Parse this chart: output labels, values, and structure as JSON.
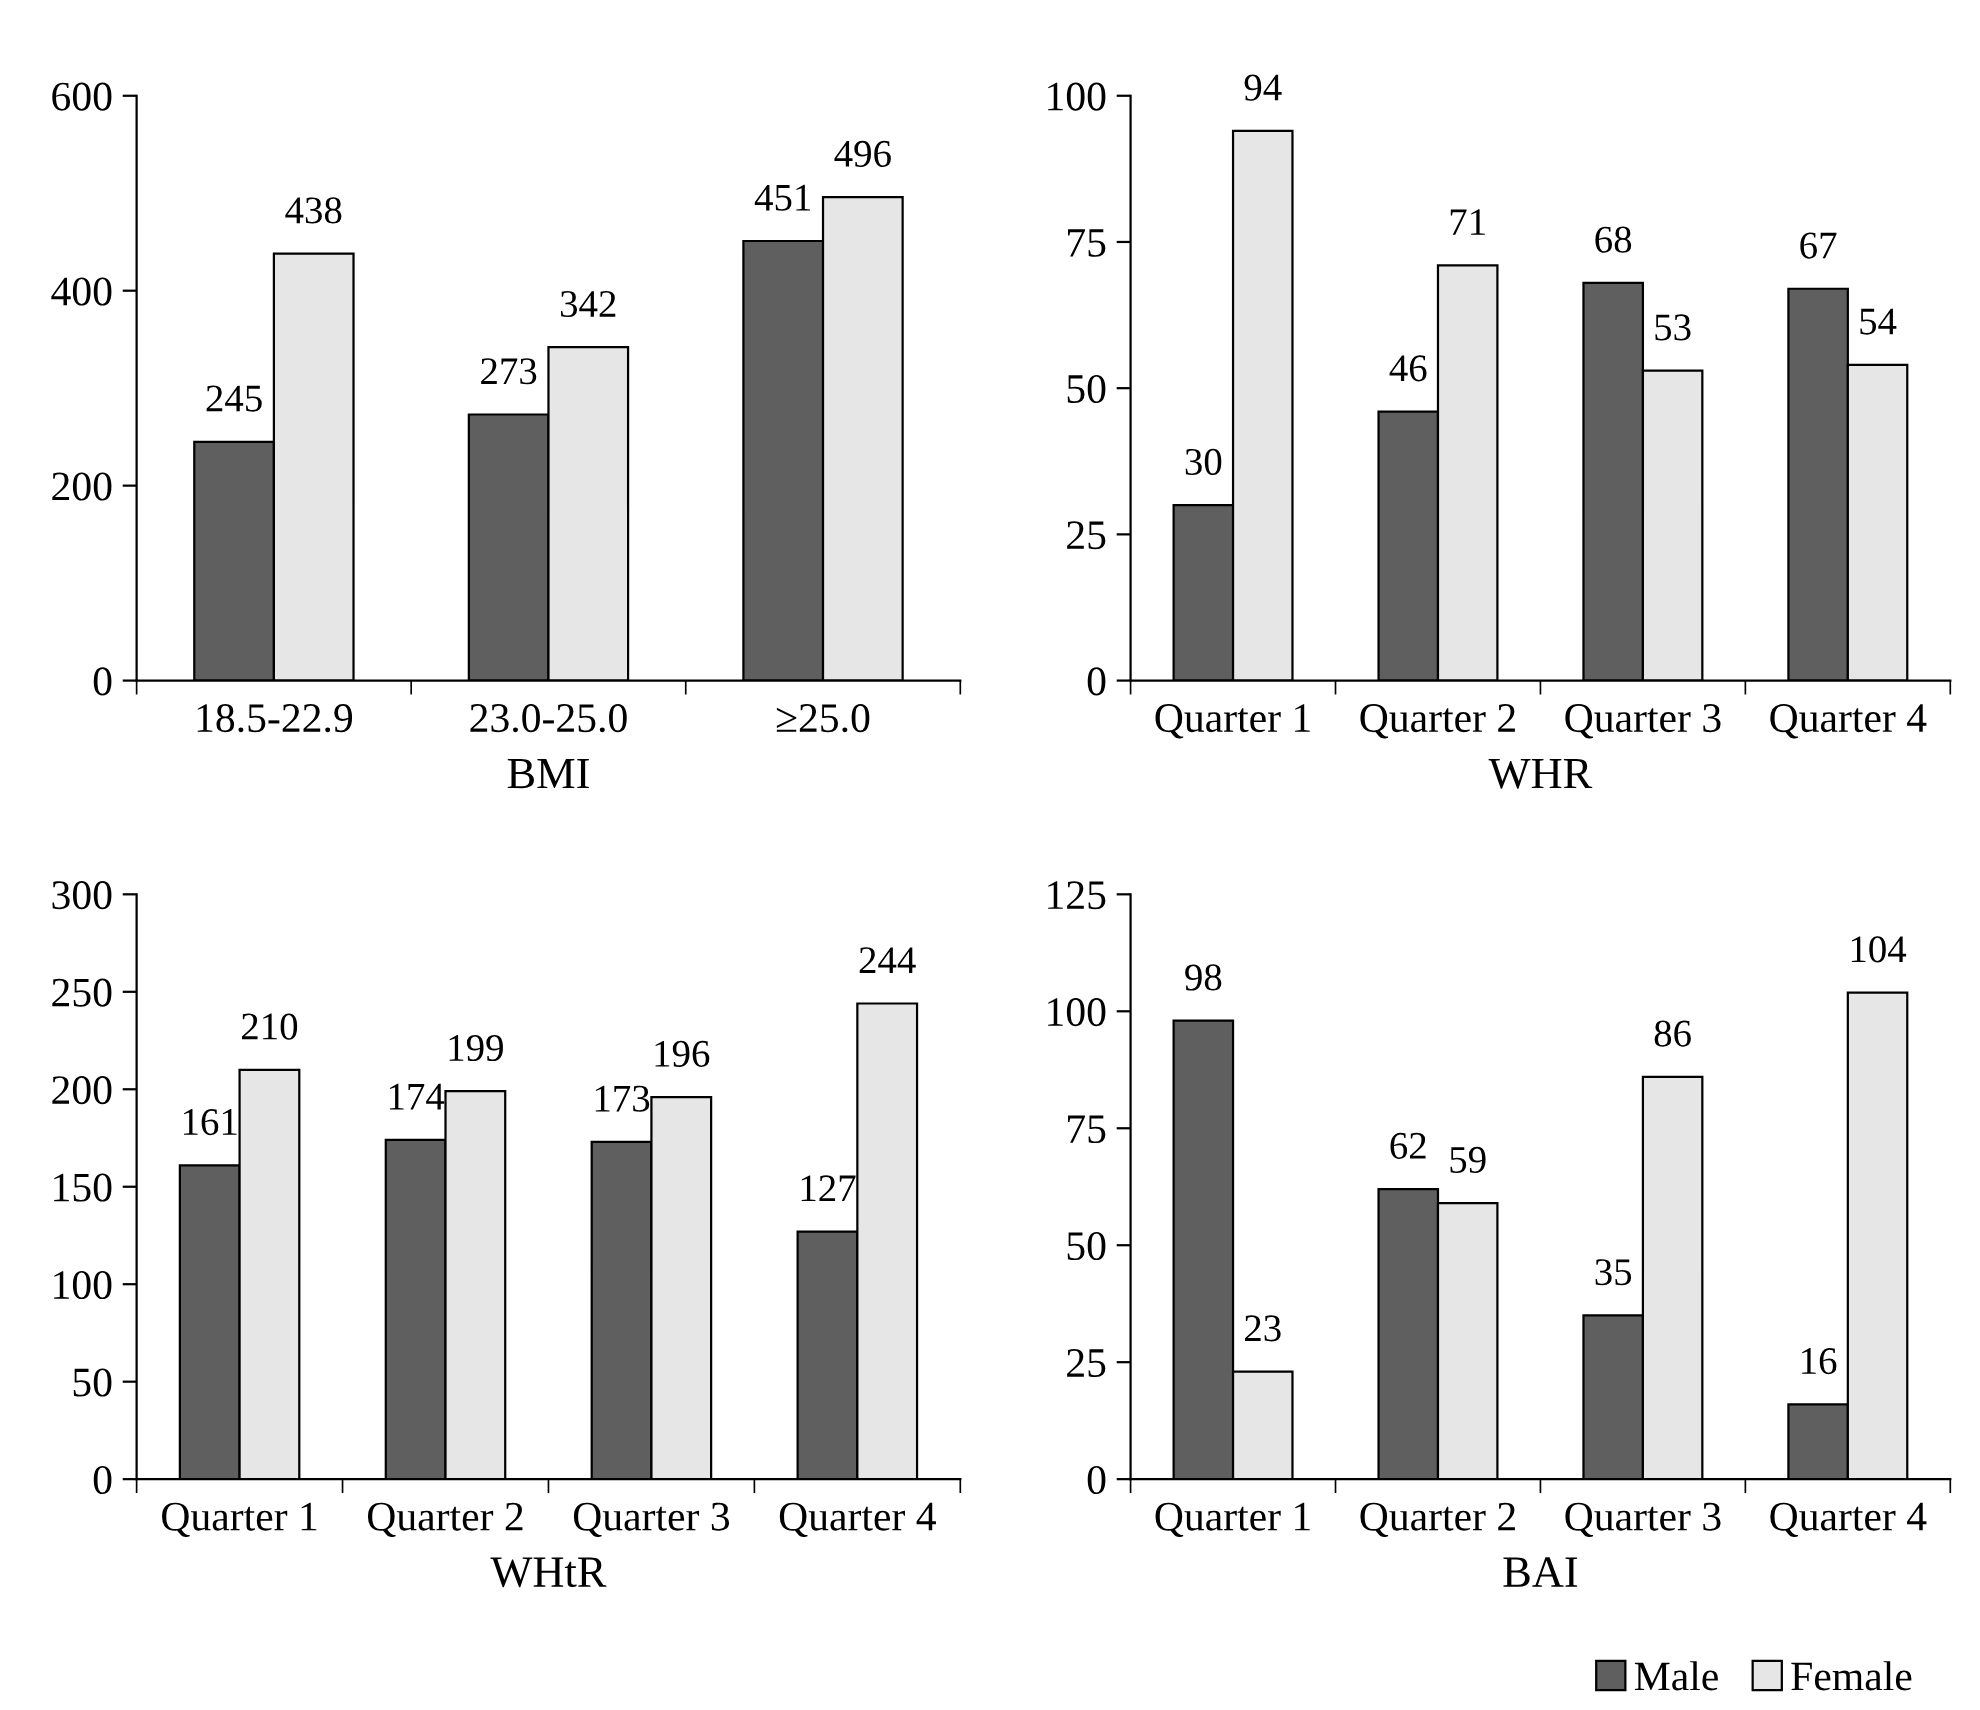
{
  "chart_data": [
    {
      "type": "bar",
      "xlabel": "BMI",
      "categories": [
        "18.5-22.9",
        "23.0-25.0",
        "≥25.0"
      ],
      "series": [
        {
          "color": "#5f5f5f",
          "values": [
            245,
            273,
            451
          ]
        },
        {
          "color": "#e6e6e6",
          "values": [
            438,
            342,
            496
          ]
        }
      ],
      "ylim": [
        0,
        600
      ],
      "yticks": [
        0,
        200,
        400,
        600
      ],
      "data_labels": true,
      "grid": false,
      "legend": false
    },
    {
      "type": "bar",
      "xlabel": "WHR",
      "categories": [
        "Quarter 1",
        "Quarter 2",
        "Quarter 3",
        "Quarter 4"
      ],
      "series": [
        {
          "color": "#5f5f5f",
          "values": [
            30,
            46,
            68,
            67
          ]
        },
        {
          "color": "#e6e6e6",
          "values": [
            94,
            71,
            53,
            54
          ]
        }
      ],
      "ylim": [
        0,
        100
      ],
      "yticks": [
        0,
        25,
        50,
        75,
        100
      ],
      "data_labels": true,
      "grid": false,
      "legend": false
    },
    {
      "type": "bar",
      "xlabel": "WHtR",
      "categories": [
        "Quarter 1",
        "Quarter 2",
        "Quarter 3",
        "Quarter 4"
      ],
      "series": [
        {
          "color": "#5f5f5f",
          "values": [
            161,
            174,
            173,
            127
          ]
        },
        {
          "color": "#e6e6e6",
          "values": [
            210,
            199,
            196,
            244
          ]
        }
      ],
      "ylim": [
        0,
        300
      ],
      "yticks": [
        0,
        50,
        100,
        150,
        200,
        250,
        300
      ],
      "data_labels": true,
      "grid": false,
      "legend": false
    },
    {
      "type": "bar",
      "xlabel": "BAI",
      "categories": [
        "Quarter 1",
        "Quarter 2",
        "Quarter 3",
        "Quarter 4"
      ],
      "series": [
        {
          "name": "Male",
          "color": "#5f5f5f",
          "values": [
            98,
            62,
            35,
            16
          ]
        },
        {
          "name": "Female",
          "color": "#e6e6e6",
          "values": [
            23,
            59,
            86,
            104
          ]
        }
      ],
      "ylim": [
        0,
        125
      ],
      "yticks": [
        0,
        25,
        50,
        75,
        100,
        125
      ],
      "data_labels": true,
      "grid": false,
      "legend": "bottom right"
    }
  ]
}
